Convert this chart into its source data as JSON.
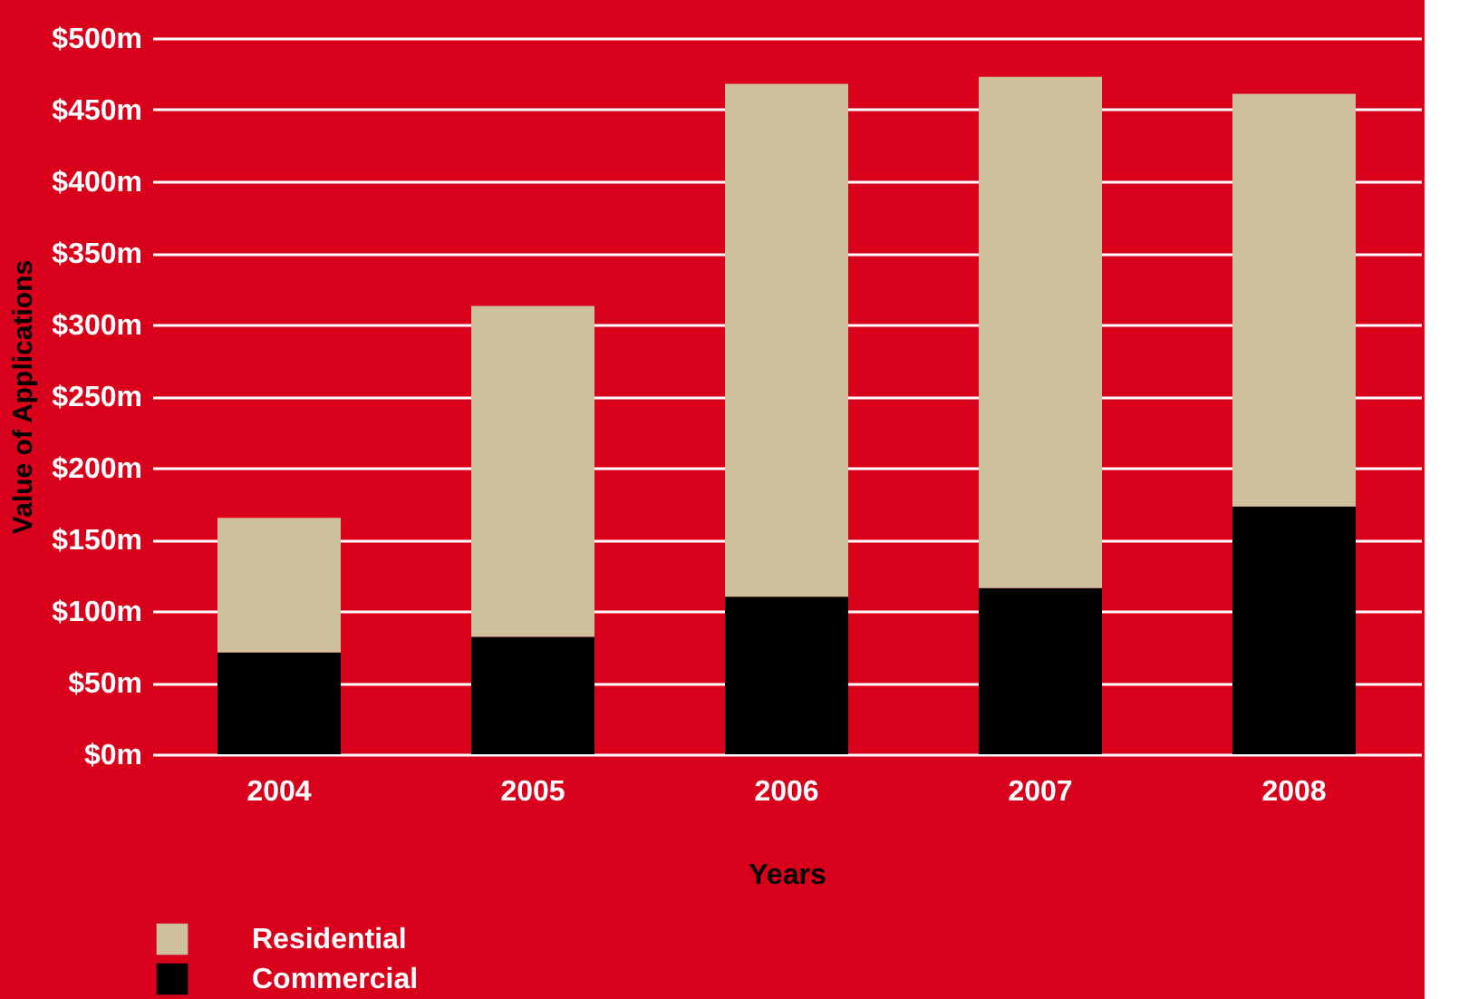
{
  "chart_data": {
    "type": "bar",
    "stacked": true,
    "categories": [
      "2004",
      "2005",
      "2006",
      "2007",
      "2008"
    ],
    "series": [
      {
        "name": "Commercial",
        "color": "#000000",
        "values": [
          71,
          82,
          110,
          116,
          173
        ]
      },
      {
        "name": "Residential",
        "color": "#cfc09d",
        "values": [
          94,
          231,
          358,
          357,
          288
        ]
      }
    ],
    "xlabel": "Years",
    "ylabel": "Value of Applications",
    "ylim": [
      0,
      500
    ],
    "yticks": [
      {
        "value": 0,
        "label": "$0m"
      },
      {
        "value": 50,
        "label": "$50m"
      },
      {
        "value": 100,
        "label": "$100m"
      },
      {
        "value": 150,
        "label": "$150m"
      },
      {
        "value": 200,
        "label": "$200m"
      },
      {
        "value": 250,
        "label": "$250m"
      },
      {
        "value": 300,
        "label": "$300m"
      },
      {
        "value": 350,
        "label": "$350m"
      },
      {
        "value": 400,
        "label": "$400m"
      },
      {
        "value": 450,
        "label": "$450m"
      },
      {
        "value": 500,
        "label": "$500m"
      }
    ],
    "grid": "y",
    "legend": "bottom left"
  }
}
